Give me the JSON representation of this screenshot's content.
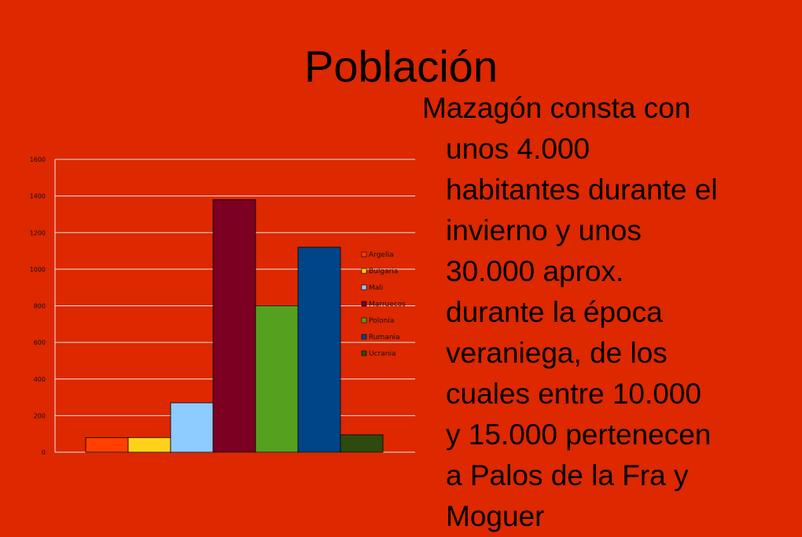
{
  "slide": {
    "title": "Población",
    "body_lines": [
      "Mazagón consta con",
      "unos 4.000",
      "habitantes durante el",
      "invierno y unos",
      "30.000 aprox.",
      "durante la época",
      "veraniega, de los",
      "cuales entre 10.000",
      "y 15.000 pertenecen",
      "a Palos de la Fra y",
      "Moguer"
    ]
  },
  "chart_data": {
    "type": "bar",
    "title": "",
    "xlabel": "",
    "ylabel": "",
    "ylim": [
      0,
      1600
    ],
    "yticks": [
      0,
      200,
      400,
      600,
      800,
      1000,
      1200,
      1400,
      1600
    ],
    "grid": true,
    "legend_position": "right",
    "series": [
      {
        "name": "Argelia",
        "value": 80,
        "color": "#ff4000"
      },
      {
        "name": "Bulgaria",
        "value": 80,
        "color": "#ffd21a"
      },
      {
        "name": "Mali",
        "value": 270,
        "color": "#8ecbff"
      },
      {
        "name": "Marruecos",
        "value": 1380,
        "color": "#7c0021"
      },
      {
        "name": "Polonia",
        "value": 800,
        "color": "#55a01f"
      },
      {
        "name": "Rumania",
        "value": 1120,
        "color": "#004587"
      },
      {
        "name": "Ucrania",
        "value": 95,
        "color": "#2e4a0e"
      }
    ]
  }
}
